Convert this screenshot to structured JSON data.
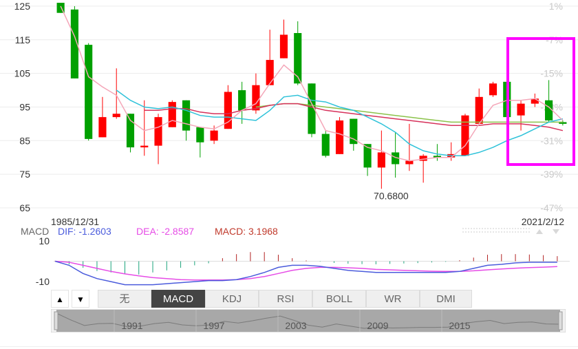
{
  "price_axis": {
    "ticks": [
      "125",
      "115",
      "105",
      "95",
      "85",
      "75",
      "65"
    ],
    "tick_values": [
      125,
      115,
      105,
      95,
      85,
      75,
      65
    ],
    "range": [
      65,
      125.6
    ]
  },
  "percent_axis": {
    "ticks": [
      "1%",
      "-7%",
      "-15%",
      "-23%",
      "-31%",
      "-39%",
      "-47%"
    ]
  },
  "price_annotations": {
    "low_label": "70.6800",
    "low_value": 70.68,
    "start_date": "1985/12/31",
    "end_date": "2021/2/12"
  },
  "indicator_legend": {
    "name": "MACD",
    "dif": "DIF: -1.2603",
    "dea": "DEA: -2.8587",
    "macd": "MACD: 3.1968"
  },
  "macd_axis": {
    "ticks": [
      "10",
      "-10"
    ],
    "tick_values": [
      10,
      -10
    ]
  },
  "tabs": {
    "up_arrow": "▲",
    "down_arrow": "▼",
    "items": [
      "无",
      "MACD",
      "KDJ",
      "RSI",
      "BOLL",
      "WR",
      "DMI"
    ],
    "active_index": 1
  },
  "navigator": {
    "years": [
      "1991",
      "1997",
      "2003",
      "2009",
      "2015"
    ]
  },
  "colors": {
    "up": "#ff0000",
    "down": "#00a000",
    "ma_fast": "#f4a6b8",
    "ma_mid": "#2ec2d9",
    "ma_slow": "#d6305a",
    "ma_long": "#8bc24a",
    "dif": "#4a5bdc",
    "dea": "#e64be6",
    "macd_label": "#c0392b",
    "highlight": "#ff00ff"
  },
  "chart_data": {
    "type": "candlestick",
    "x_range": [
      "1985/12/31",
      "2021/2/12"
    ],
    "candles": [
      {
        "o": 126,
        "h": 126,
        "l": 123,
        "c": 123
      },
      {
        "o": 124,
        "h": 125,
        "l": 103.5,
        "c": 103.5
      },
      {
        "o": 113.5,
        "h": 114,
        "l": 85,
        "c": 85.5
      },
      {
        "o": 86,
        "h": 98,
        "l": 86,
        "c": 92
      },
      {
        "o": 92,
        "h": 106.5,
        "l": 91.5,
        "c": 93
      },
      {
        "o": 93,
        "h": 93,
        "l": 81.5,
        "c": 83
      },
      {
        "o": 83,
        "h": 97,
        "l": 80.5,
        "c": 83.5
      },
      {
        "o": 83.5,
        "h": 93,
        "l": 78,
        "c": 92
      },
      {
        "o": 89,
        "h": 97,
        "l": 89,
        "c": 96.5
      },
      {
        "o": 97,
        "h": 97,
        "l": 85,
        "c": 88
      },
      {
        "o": 89,
        "h": 89,
        "l": 80,
        "c": 84.5
      },
      {
        "o": 85,
        "h": 89.5,
        "l": 84,
        "c": 88
      },
      {
        "o": 88.5,
        "h": 101.5,
        "l": 88.5,
        "c": 99.5
      },
      {
        "o": 100,
        "h": 102.5,
        "l": 90,
        "c": 94
      },
      {
        "o": 94,
        "h": 105,
        "l": 93,
        "c": 101.5
      },
      {
        "o": 101.5,
        "h": 118,
        "l": 101.5,
        "c": 109
      },
      {
        "o": 109.5,
        "h": 121,
        "l": 109.5,
        "c": 116.5
      },
      {
        "o": 117,
        "h": 120.5,
        "l": 101.5,
        "c": 102
      },
      {
        "o": 102,
        "h": 102,
        "l": 86,
        "c": 87
      },
      {
        "o": 87,
        "h": 88,
        "l": 80,
        "c": 80.5
      },
      {
        "o": 81,
        "h": 92,
        "l": 81,
        "c": 91
      },
      {
        "o": 91.5,
        "h": 91.5,
        "l": 82,
        "c": 84
      },
      {
        "o": 84,
        "h": 84,
        "l": 74.5,
        "c": 77
      },
      {
        "o": 77,
        "h": 88,
        "l": 70.68,
        "c": 81.5
      },
      {
        "o": 81.5,
        "h": 87.5,
        "l": 74,
        "c": 78
      },
      {
        "o": 78,
        "h": 90,
        "l": 76,
        "c": 79
      },
      {
        "o": 79,
        "h": 81,
        "l": 72.5,
        "c": 80.5
      },
      {
        "o": 80.5,
        "h": 84,
        "l": 79,
        "c": 80
      },
      {
        "o": 80,
        "h": 84.5,
        "l": 79,
        "c": 81
      },
      {
        "o": 80.5,
        "h": 93,
        "l": 80.5,
        "c": 92.5
      },
      {
        "o": 90,
        "h": 100.5,
        "l": 90,
        "c": 98
      },
      {
        "o": 98.5,
        "h": 102.5,
        "l": 98,
        "c": 102
      },
      {
        "o": 102.5,
        "h": 103,
        "l": 91.5,
        "c": 92
      },
      {
        "o": 92.5,
        "h": 97,
        "l": 88,
        "c": 96
      },
      {
        "o": 96,
        "h": 99,
        "l": 95,
        "c": 97.5
      },
      {
        "o": 97,
        "h": 103,
        "l": 90.5,
        "c": 91
      },
      {
        "o": 90.5,
        "h": 91,
        "l": 89.5,
        "c": 90
      }
    ],
    "ma_fast": [
      125,
      116,
      104,
      101,
      98.5,
      91,
      88,
      89,
      91,
      90,
      89,
      88.5,
      90.5,
      94,
      96,
      102,
      107.5,
      104,
      96,
      88,
      87,
      85.5,
      83,
      82,
      80,
      79,
      79.5,
      80,
      80,
      83.5,
      90,
      95.5,
      97,
      97,
      97.5,
      95,
      91
    ],
    "ma_mid": [
      null,
      null,
      null,
      null,
      100,
      97,
      95,
      94.5,
      95,
      94,
      92.5,
      92,
      92,
      91.5,
      91,
      94,
      98,
      98.5,
      97,
      96.5,
      95,
      94,
      92,
      90,
      87.5,
      84,
      82,
      81,
      80.5,
      80.5,
      81.5,
      83,
      85,
      86.5,
      88.5,
      90.5,
      91.5
    ],
    "ma_slow": [
      null,
      null,
      null,
      null,
      null,
      null,
      94,
      94,
      94.5,
      94.5,
      93.5,
      93,
      93,
      94,
      94.5,
      95.5,
      96,
      96,
      95,
      94,
      93.5,
      93,
      92.5,
      92,
      91.5,
      91,
      90.5,
      90,
      89.5,
      89.5,
      89.5,
      90,
      90,
      90,
      89.5,
      89,
      88
    ],
    "ma_long": [
      null,
      null,
      null,
      null,
      null,
      null,
      null,
      null,
      null,
      null,
      null,
      null,
      null,
      null,
      95,
      95.5,
      96,
      96,
      95.5,
      95,
      94.5,
      94,
      93.5,
      93,
      92.5,
      92,
      91.5,
      91,
      90.5,
      90.5,
      90.5,
      90.5,
      90.5,
      90.5,
      90.5,
      90.5,
      90.5
    ],
    "macd_hist": [
      0.2,
      -1.5,
      -3.2,
      -4.8,
      -5.5,
      -6.2,
      -6.5,
      -5.5,
      -4.5,
      -3.2,
      -2,
      -1,
      1.5,
      3.5,
      4.5,
      4.5,
      3.2,
      1.5,
      0.4,
      -0.2,
      -0.8,
      -1.2,
      -1.4,
      -1.5,
      -1.3,
      -1.1,
      -0.9,
      -0.6,
      -0.3,
      0.5,
      1.8,
      3.2,
      3.5,
      3.5,
      3.3,
      3,
      2.5
    ],
    "dif": [
      0,
      -2,
      -6,
      -8.5,
      -10,
      -11.5,
      -11.5,
      -11.5,
      -11,
      -10.5,
      -10,
      -9.5,
      -9.5,
      -9,
      -7.5,
      -5.5,
      -3,
      -2,
      -2,
      -2.5,
      -3.5,
      -4.5,
      -5,
      -5.5,
      -5.5,
      -5.5,
      -5.5,
      -5.5,
      -5.5,
      -5,
      -3.5,
      -2,
      -1.5,
      -0.8,
      -0.5,
      -0.5,
      -0.5
    ],
    "dea": [
      0,
      -0.5,
      -2,
      -3.5,
      -5,
      -6.2,
      -7.2,
      -8,
      -8.5,
      -9,
      -9.2,
      -9.2,
      -9.2,
      -9,
      -8.5,
      -7.5,
      -6,
      -4.5,
      -3.5,
      -3,
      -3,
      -3.2,
      -3.5,
      -4,
      -4.2,
      -4.5,
      -4.7,
      -4.9,
      -5,
      -5,
      -4.7,
      -4.2,
      -3.8,
      -3.4,
      -3.1,
      -2.9,
      -2.6
    ],
    "macd_range": [
      -13,
      12
    ],
    "navigator_close": [
      125,
      104,
      86,
      92,
      93,
      83,
      84,
      92,
      96,
      88,
      85,
      88,
      99,
      94,
      101,
      109,
      116,
      102,
      87,
      81,
      91,
      84,
      77,
      81,
      78,
      79,
      80,
      80,
      81,
      92,
      98,
      102,
      92,
      96,
      97,
      91,
      90
    ]
  }
}
